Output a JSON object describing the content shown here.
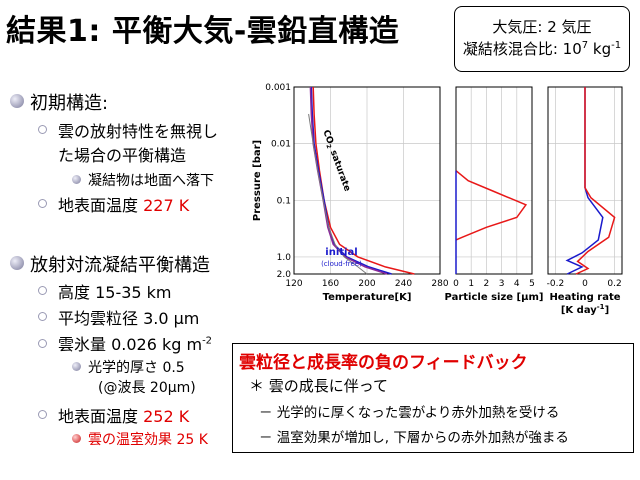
{
  "slide": {
    "title": "結果1: 平衡大気-雲鉛直構造",
    "params": {
      "line1": "大気圧: 2 気圧",
      "line2_prefix": "凝結核混合比: 10",
      "line2_exp": "7",
      "line2_unit": " kg",
      "line2_unit_exp": "-1"
    }
  },
  "bullets": {
    "initial_structure": "初期構造:",
    "no_cloud_radiation": "雲の放射特性を無視し",
    "equilibrium_structure": "た場合の平衡構造",
    "condensate_falls": "凝結物は地面へ落下",
    "surface_temp_label": "地表面温度",
    "surface_temp_value": "227 K",
    "radiative_convective": "放射対流凝結平衡構造",
    "altitude": "高度 15-35 km",
    "mean_radius_prefix": "平均雲粒径 3.0 ",
    "mean_radius_unit": "μm",
    "cloud_ice_prefix": "雲氷量 0.026 kg m",
    "cloud_ice_exp": "-2",
    "optical_depth": "光学的厚さ 0.5",
    "at_wavelength": "(@波長 20μm)",
    "surface_temp2_label": "地表面温度",
    "surface_temp2_value": "252 K",
    "greenhouse_effect": "雲の温室効果 25 K"
  },
  "feedback": {
    "title": "雲粒径と成長率の負のフィードバック",
    "item1": "＊ 雲の成長に伴って",
    "item2": "－ 光学的に厚くなった雲がより赤外加熱を受ける",
    "item3": "－ 温室効果が増加し, 下層からの赤外加熱が強まる"
  },
  "colors": {
    "red_text": "#e00000",
    "bullet_gray": "#9a9ab4",
    "series_red": "#e81818",
    "series_blue": "#1a1acc",
    "series_purple": "#8a2a9a",
    "series_gray": "#7a7a7a"
  },
  "chart_data": {
    "type": "line",
    "y_axis": {
      "label": "Pressure [bar]",
      "scale": "log",
      "inverted": true,
      "ticks": [
        0.001,
        0.01,
        0.1,
        1.0,
        2.0
      ],
      "tick_labels": [
        "0.001",
        "0.01",
        "0.1",
        "1.0",
        "2.0"
      ]
    },
    "panels": [
      {
        "id": "temperature",
        "xlabel": "Temperature[K]",
        "xlim": [
          120,
          280
        ],
        "xticks": [
          120,
          160,
          200,
          240,
          280
        ],
        "grid": true,
        "annotations": {
          "co2_saturate_prefix": "CO",
          "co2_sub": "2",
          "co2_saturate_suffix": " saturate",
          "initial": "initial",
          "cloud_free": "(cloud-free)"
        },
        "series": [
          {
            "color": "red",
            "points": [
              [
                141,
                0.001
              ],
              [
                142,
                0.003
              ],
              [
                144,
                0.01
              ],
              [
                148,
                0.03
              ],
              [
                153,
                0.1
              ],
              [
                160,
                0.3
              ],
              [
                170,
                0.6
              ],
              [
                190,
                1.0
              ],
              [
                220,
                1.5
              ],
              [
                252,
                2.0
              ]
            ]
          },
          {
            "color": "blue",
            "points": [
              [
                139,
                0.001
              ],
              [
                140,
                0.003
              ],
              [
                142,
                0.01
              ],
              [
                147,
                0.03
              ],
              [
                153,
                0.1
              ],
              [
                158,
                0.3
              ],
              [
                164,
                0.6
              ],
              [
                178,
                1.0
              ],
              [
                202,
                1.5
              ],
              [
                227,
                2.0
              ]
            ]
          },
          {
            "color": "purple",
            "points": [
              [
                138,
                0.001
              ],
              [
                139,
                0.003
              ],
              [
                141,
                0.01
              ],
              [
                146,
                0.03
              ],
              [
                152,
                0.1
              ],
              [
                157,
                0.3
              ],
              [
                163,
                0.6
              ],
              [
                176,
                1.0
              ],
              [
                198,
                1.5
              ],
              [
                222,
                2.0
              ]
            ]
          },
          {
            "color": "gray",
            "points": [
              [
                136,
                0.003
              ],
              [
                141,
                0.01
              ],
              [
                146,
                0.03
              ],
              [
                152,
                0.1
              ],
              [
                158,
                0.3
              ],
              [
                165,
                0.6
              ],
              [
                175,
                1.0
              ],
              [
                190,
                1.5
              ],
              [
                200,
                2.0
              ]
            ]
          }
        ]
      },
      {
        "id": "particle_size",
        "xlabel": "Particle size [μm]",
        "xlim": [
          0,
          5
        ],
        "xticks": [
          0,
          1,
          2,
          3,
          4,
          5
        ],
        "grid": true,
        "series": [
          {
            "color": "red",
            "points": [
              [
                0,
                0.03
              ],
              [
                0.8,
                0.045
              ],
              [
                2.5,
                0.07
              ],
              [
                4.6,
                0.12
              ],
              [
                4.0,
                0.2
              ],
              [
                2.0,
                0.3
              ],
              [
                0.4,
                0.45
              ],
              [
                0,
                0.5
              ]
            ]
          },
          {
            "color": "blue",
            "points": [
              [
                0,
                0.03
              ],
              [
                0,
                2.0
              ]
            ]
          }
        ]
      },
      {
        "id": "heating_rate",
        "xlabel": "Heating rate",
        "xlabel2": "[K day",
        "xlabel2_exp": "-1",
        "xlabel2_end": "]",
        "xlim": [
          -0.25,
          0.25
        ],
        "xticks": [
          -0.2,
          0,
          0.2
        ],
        "tick_labels": [
          "-0.2",
          "0",
          "0.2"
        ],
        "grid": true,
        "series": [
          {
            "color": "blue",
            "points": [
              [
                0,
                0.001
              ],
              [
                0,
                0.06
              ],
              [
                0.02,
                0.09
              ],
              [
                0.12,
                0.2
              ],
              [
                0.09,
                0.5
              ],
              [
                -0.02,
                0.85
              ],
              [
                -0.12,
                1.15
              ],
              [
                -0.02,
                1.5
              ],
              [
                -0.12,
                2.0
              ]
            ]
          },
          {
            "color": "red",
            "points": [
              [
                0,
                0.001
              ],
              [
                0,
                0.06
              ],
              [
                0.04,
                0.09
              ],
              [
                0.2,
                0.2
              ],
              [
                0.16,
                0.45
              ],
              [
                0.02,
                0.8
              ],
              [
                -0.05,
                1.2
              ],
              [
                0.02,
                1.6
              ],
              [
                -0.06,
                2.0
              ]
            ]
          }
        ]
      }
    ]
  }
}
